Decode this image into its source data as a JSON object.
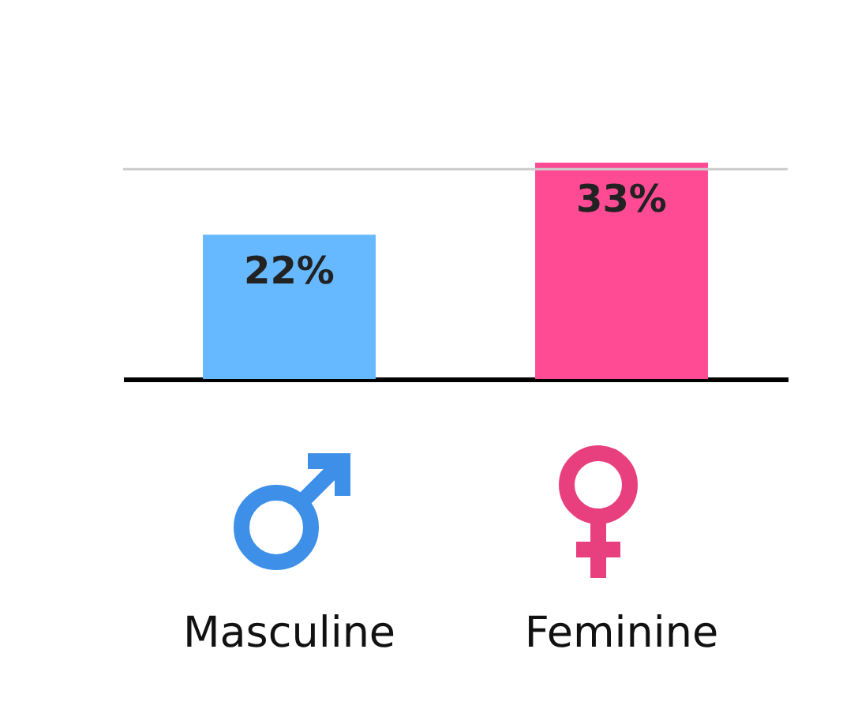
{
  "chart_data": {
    "type": "bar",
    "categories": [
      "Masculine",
      "Feminine"
    ],
    "values": [
      22,
      33
    ],
    "colors": [
      "#66b8ff",
      "#ff4a94"
    ],
    "value_labels": [
      "22%",
      "33%"
    ],
    "ref_lines": [
      {
        "axis": "y",
        "value": 32,
        "color": "#cccccc"
      }
    ]
  }
}
